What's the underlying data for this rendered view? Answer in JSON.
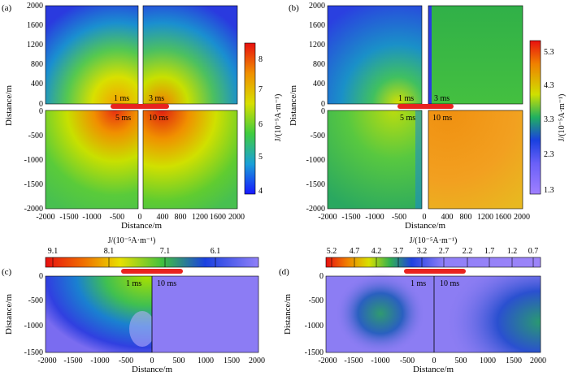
{
  "figure": {
    "panels": [
      {
        "label": "(a)",
        "ylabel": "Distance/m",
        "xlabel": "Distance/m",
        "yticks_top": [
          "2000",
          "1600",
          "1200",
          "800",
          "400",
          "0"
        ],
        "yticks_bottom": [
          "0",
          "-500",
          "-1000",
          "-1500",
          "-2000"
        ],
        "xticks": [
          "-2000",
          "-1500",
          "-1000",
          "-500",
          "0",
          "400",
          "800",
          "1200",
          "1600",
          "2000"
        ],
        "time_labels": [
          "1 ms",
          "3 ms",
          "5 ms",
          "10 ms"
        ],
        "colorbar": {
          "label": "J/(10⁻⁵A·m⁻¹)",
          "ticks": [
            "8",
            "7",
            "6",
            "5",
            "4"
          ]
        }
      },
      {
        "label": "(b)",
        "ylabel": "Distance/m",
        "xlabel": "Distance/m",
        "yticks_top": [
          "2000",
          "1600",
          "1200",
          "800",
          "400",
          "0"
        ],
        "yticks_bottom": [
          "0",
          "-500",
          "-1000",
          "-1500",
          "-2000"
        ],
        "xticks": [
          "-2000",
          "-1500",
          "-1000",
          "-500",
          "0",
          "400",
          "800",
          "1200",
          "1600",
          "2000"
        ],
        "time_labels": [
          "1 ms",
          "3 ms",
          "5 ms",
          "10 ms"
        ],
        "colorbar": {
          "label": "J/(10⁻⁵A·m⁻¹)",
          "ticks": [
            "5.3",
            "4.3",
            "3.3",
            "2.3",
            "1.3"
          ]
        }
      },
      {
        "label": "(c)",
        "ylabel": "Distance/m",
        "xlabel": "Distance/m",
        "yticks": [
          "0",
          "-500",
          "-1000",
          "-1500"
        ],
        "xticks": [
          "-2000",
          "-1500",
          "-1000",
          "-500",
          "0",
          "500",
          "1000",
          "1500",
          "2000"
        ],
        "time_labels": [
          "1 ms",
          "10 ms"
        ],
        "colorbar": {
          "label": "J/(10⁻⁵A·m⁻¹)",
          "ticks": [
            "9.1",
            "8.1",
            "7.1",
            "6.1"
          ]
        }
      },
      {
        "label": "(d)",
        "ylabel": "Distance/m",
        "xlabel": "Distance/m",
        "yticks": [
          "0",
          "-500",
          "-1000",
          "-1500"
        ],
        "xticks": [
          "-2000",
          "-1500",
          "-1000",
          "-500",
          "0",
          "500",
          "1000",
          "1500",
          "2000"
        ],
        "time_labels": [
          "1 ms",
          "10 ms"
        ],
        "colorbar": {
          "label": "J/(10⁻⁵A·m⁻¹)",
          "ticks": [
            "5.2",
            "4.7",
            "4.2",
            "3.7",
            "3.2",
            "2.7",
            "2.2",
            "1.7",
            "1.2",
            "0.7"
          ]
        }
      }
    ],
    "colors": {
      "source_bar": "#e8231f",
      "text": "#000000"
    }
  }
}
